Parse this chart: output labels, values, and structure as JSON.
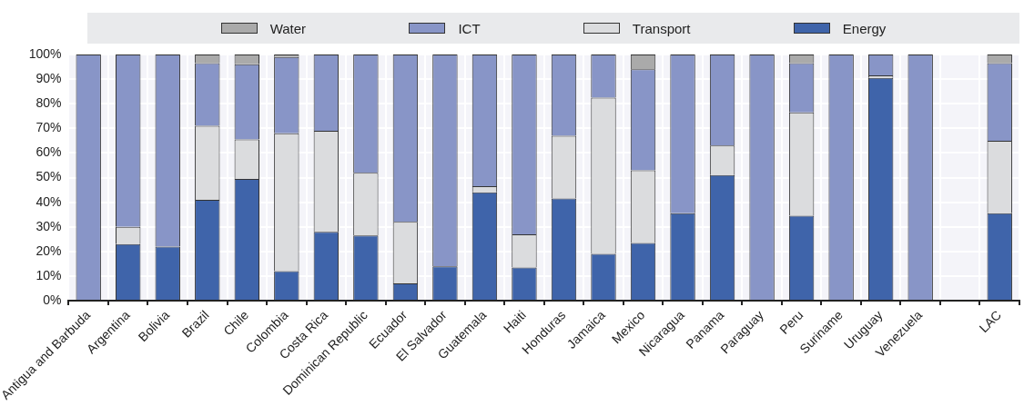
{
  "chart_data": {
    "type": "bar",
    "stacked": true,
    "categories": [
      "Antigua and Barbuda",
      "Argentina",
      "Bolivia",
      "Brazil",
      "Chile",
      "Colombia",
      "Costa Rica",
      "Dominican Republic",
      "Ecuador",
      "El Salvador",
      "Guatemala",
      "Haiti",
      "Honduras",
      "Jamaica",
      "Mexico",
      "Nicaragua",
      "Panama",
      "Paraguay",
      "Peru",
      "Suriname",
      "Uruguay",
      "Venezuela",
      null,
      "LAC"
    ],
    "series": [
      {
        "name": "Energy",
        "color": "#3f64aa",
        "values": [
          0,
          23,
          22,
          41,
          49.5,
          12,
          28,
          26.5,
          7,
          14,
          44,
          13.5,
          41.5,
          19,
          23.5,
          35.5,
          51,
          0,
          34.5,
          0,
          90.5,
          0,
          null,
          35.5
        ]
      },
      {
        "name": "Transport",
        "color": "#dbdcde",
        "values": [
          0,
          7,
          0,
          30,
          16,
          56,
          41,
          25.5,
          25,
          0,
          2.5,
          13.5,
          25.5,
          63.5,
          29.5,
          0,
          12,
          0,
          42,
          0,
          1,
          0,
          null,
          29.5
        ]
      },
      {
        "name": "ICT",
        "color": "#8895c7",
        "values": [
          100,
          70,
          78,
          25.5,
          30.5,
          31,
          31,
          48,
          68,
          86,
          53.5,
          73,
          33,
          17.5,
          41,
          64.5,
          37,
          100,
          20,
          100,
          8.5,
          100,
          null,
          31.5
        ]
      },
      {
        "name": "Water",
        "color": "#aaaaaa",
        "values": [
          0,
          0,
          0,
          3.5,
          4,
          1,
          0,
          0,
          0,
          0,
          0,
          0,
          0,
          0,
          6,
          0,
          0,
          0,
          3.5,
          0,
          0,
          0,
          null,
          3.5
        ]
      }
    ],
    "ylim": [
      0,
      100
    ],
    "yticks": [
      {
        "value": 0,
        "label": "0%"
      },
      {
        "value": 10,
        "label": "10%"
      },
      {
        "value": 20,
        "label": "20%"
      },
      {
        "value": 30,
        "label": "30%"
      },
      {
        "value": 40,
        "label": "40%"
      },
      {
        "value": 50,
        "label": "50%"
      },
      {
        "value": 60,
        "label": "60%"
      },
      {
        "value": 70,
        "label": "70%"
      },
      {
        "value": 80,
        "label": "80%"
      },
      {
        "value": 90,
        "label": "90%"
      },
      {
        "value": 100,
        "label": "100%"
      }
    ],
    "grid": true,
    "legend": "top"
  }
}
